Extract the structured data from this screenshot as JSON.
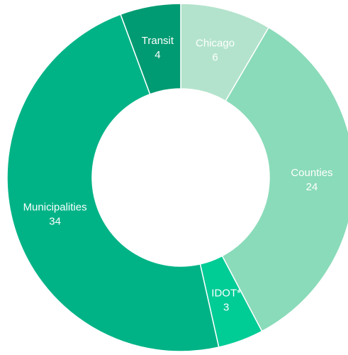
{
  "chart_data": {
    "type": "donut",
    "categories": [
      "Chicago",
      "Counties",
      "IDOT*",
      "Municipalities",
      "Transit"
    ],
    "values": [
      6,
      24,
      3,
      34,
      4
    ],
    "colors": [
      "#b3e3cc",
      "#8adbb9",
      "#00cc96",
      "#00b386",
      "#009b72"
    ]
  }
}
